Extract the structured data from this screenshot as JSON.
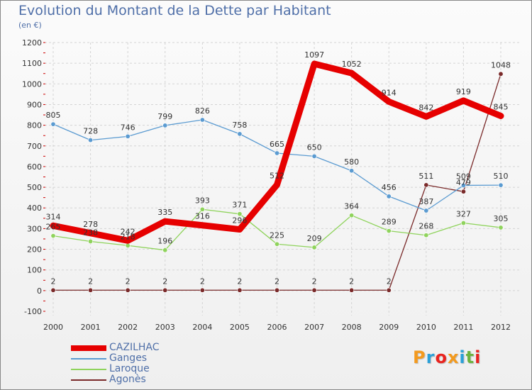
{
  "title": "Evolution du Montant de la Dette par Habitant",
  "subtitle": "(en €)",
  "logo": {
    "letters": [
      "P",
      "r",
      "o",
      "x",
      "i",
      "t",
      "i"
    ],
    "colors": [
      "#f39a1e",
      "#2aa0d8",
      "#e9231f",
      "#f39a1e",
      "#2aa0d8",
      "#6cb33f",
      "#e9231f"
    ]
  },
  "chart_data": {
    "type": "line",
    "x": [
      "2000",
      "2001",
      "2002",
      "2003",
      "2004",
      "2005",
      "2006",
      "2007",
      "2008",
      "2009",
      "2010",
      "2011",
      "2012"
    ],
    "ylim": [
      -100,
      1200
    ],
    "yticks": [
      "-100",
      "0",
      "100",
      "200",
      "300",
      "400",
      "500",
      "600",
      "700",
      "800",
      "900",
      "1000",
      "1100",
      "1200"
    ],
    "grid": true,
    "legend_position": "bottom-left",
    "series": [
      {
        "name": "CAZILHAC",
        "color": "#e60000",
        "width": 9,
        "values": [
          314,
          278,
          242,
          335,
          316,
          296,
          512,
          1097,
          1052,
          914,
          842,
          919,
          845
        ],
        "labels": [
          "314",
          "278",
          "242",
          "335",
          "316",
          "296",
          "512",
          "1097",
          "1052",
          "914",
          "842",
          "919",
          "845"
        ]
      },
      {
        "name": "Ganges",
        "color": "#5b9bd1",
        "width": 1.3,
        "values": [
          805,
          728,
          746,
          799,
          826,
          758,
          665,
          650,
          580,
          456,
          387,
          509,
          510
        ],
        "labels": [
          "805",
          "728",
          "746",
          "799",
          "826",
          "758",
          "665",
          "650",
          "580",
          "456",
          "387",
          "509",
          "510"
        ]
      },
      {
        "name": "Laroque",
        "color": "#8fd35c",
        "width": 1.3,
        "values": [
          265,
          238,
          218,
          196,
          393,
          371,
          225,
          209,
          364,
          289,
          268,
          327,
          305
        ],
        "labels": [
          "265",
          "238",
          "218",
          "196",
          "393",
          "371",
          "225",
          "209",
          "364",
          "289",
          "268",
          "327",
          "305"
        ]
      },
      {
        "name": "Agonès",
        "color": "#7a2a2a",
        "width": 1.3,
        "values": [
          2,
          2,
          2,
          2,
          2,
          2,
          2,
          2,
          2,
          2,
          511,
          479,
          1048
        ],
        "labels": [
          "2",
          "2",
          "2",
          "2",
          "2",
          "2",
          "2",
          "2",
          "2",
          "2",
          "511",
          "479",
          "1048"
        ]
      }
    ]
  }
}
